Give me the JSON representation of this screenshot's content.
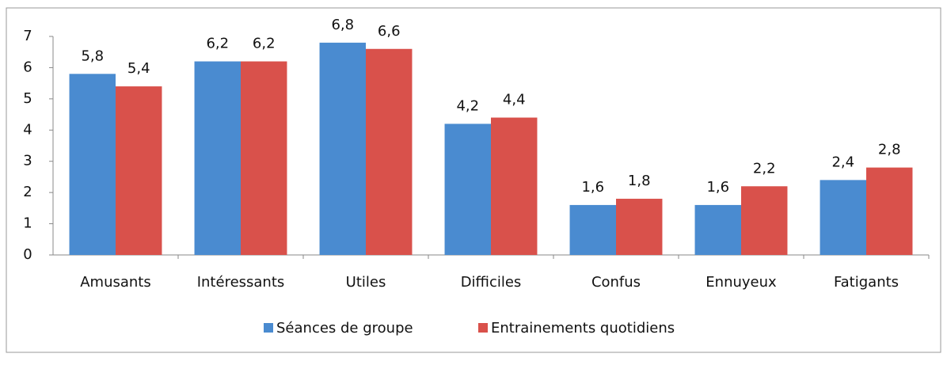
{
  "chart_data": {
    "type": "bar",
    "categories": [
      "Amusants",
      "Intéressants",
      "Utiles",
      "Difficiles",
      "Confus",
      "Ennuyeux",
      "Fatigants"
    ],
    "series": [
      {
        "name": "Séances de groupe",
        "color": "#4a8bd0",
        "values": [
          5.8,
          6.2,
          6.8,
          4.2,
          1.6,
          1.6,
          2.4
        ],
        "value_labels": [
          "5,8",
          "6,2",
          "6,8",
          "4,2",
          "1,6",
          "1,6",
          "2,4"
        ]
      },
      {
        "name": "Entrainements quotidiens",
        "color": "#d9514b",
        "values": [
          5.4,
          6.2,
          6.6,
          4.4,
          1.8,
          2.2,
          2.8
        ],
        "value_labels": [
          "5,4",
          "6,2",
          "6,6",
          "4,4",
          "1,8",
          "2,2",
          "2,8"
        ]
      }
    ],
    "ylim": [
      0,
      7
    ],
    "yticks": [
      0,
      1,
      2,
      3,
      4,
      5,
      6,
      7
    ],
    "grid": false,
    "legend": "bottom"
  }
}
